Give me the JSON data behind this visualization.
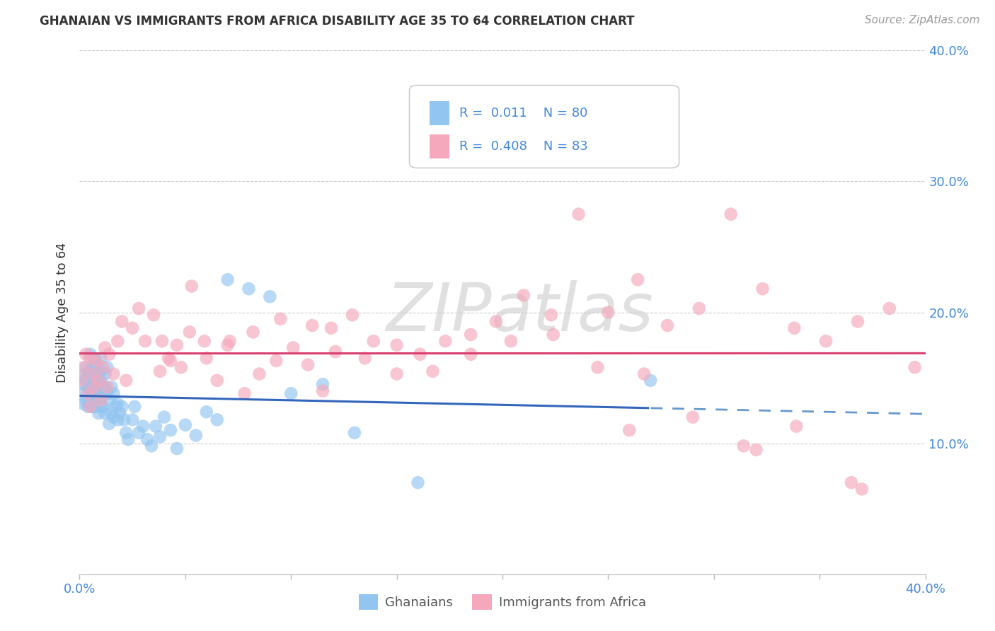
{
  "title": "GHANAIAN VS IMMIGRANTS FROM AFRICA DISABILITY AGE 35 TO 64 CORRELATION CHART",
  "source": "Source: ZipAtlas.com",
  "ylabel": "Disability Age 35 to 64",
  "xlim": [
    0.0,
    0.4
  ],
  "ylim": [
    0.0,
    0.4
  ],
  "R1": "0.011",
  "N1": "80",
  "R2": "0.408",
  "N2": "83",
  "legend_label1": "Ghanaians",
  "legend_label2": "Immigrants from Africa",
  "color_blue": "#92C5F0",
  "color_pink": "#F5A8BC",
  "line_blue_solid": "#3366BB",
  "line_blue_dashed": "#6699CC",
  "line_pink": "#D94070",
  "background_color": "#FFFFFF",
  "grid_color": "#CCCCCC",
  "watermark": "ZIPatlas",
  "blue_x": [
    0.001,
    0.002,
    0.002,
    0.002,
    0.003,
    0.003,
    0.003,
    0.004,
    0.004,
    0.004,
    0.005,
    0.005,
    0.005,
    0.005,
    0.006,
    0.006,
    0.006,
    0.006,
    0.007,
    0.007,
    0.007,
    0.007,
    0.007,
    0.008,
    0.008,
    0.008,
    0.008,
    0.009,
    0.009,
    0.009,
    0.009,
    0.01,
    0.01,
    0.01,
    0.01,
    0.01,
    0.011,
    0.011,
    0.012,
    0.012,
    0.012,
    0.013,
    0.013,
    0.014,
    0.014,
    0.015,
    0.015,
    0.016,
    0.016,
    0.017,
    0.018,
    0.018,
    0.019,
    0.02,
    0.021,
    0.022,
    0.023,
    0.025,
    0.026,
    0.028,
    0.03,
    0.032,
    0.034,
    0.036,
    0.038,
    0.04,
    0.043,
    0.046,
    0.05,
    0.055,
    0.06,
    0.065,
    0.07,
    0.08,
    0.09,
    0.1,
    0.115,
    0.13,
    0.16,
    0.27
  ],
  "blue_y": [
    0.138,
    0.152,
    0.13,
    0.145,
    0.148,
    0.133,
    0.158,
    0.143,
    0.153,
    0.128,
    0.142,
    0.133,
    0.155,
    0.168,
    0.138,
    0.148,
    0.128,
    0.158,
    0.143,
    0.133,
    0.153,
    0.128,
    0.165,
    0.138,
    0.148,
    0.128,
    0.158,
    0.143,
    0.133,
    0.153,
    0.123,
    0.148,
    0.138,
    0.128,
    0.155,
    0.165,
    0.143,
    0.128,
    0.142,
    0.153,
    0.123,
    0.138,
    0.158,
    0.133,
    0.115,
    0.143,
    0.123,
    0.138,
    0.12,
    0.128,
    0.118,
    0.13,
    0.123,
    0.128,
    0.118,
    0.108,
    0.103,
    0.118,
    0.128,
    0.108,
    0.113,
    0.103,
    0.098,
    0.113,
    0.105,
    0.12,
    0.11,
    0.096,
    0.114,
    0.106,
    0.124,
    0.118,
    0.225,
    0.218,
    0.212,
    0.138,
    0.145,
    0.108,
    0.07,
    0.148
  ],
  "pink_x": [
    0.001,
    0.002,
    0.003,
    0.004,
    0.005,
    0.006,
    0.007,
    0.008,
    0.009,
    0.01,
    0.011,
    0.012,
    0.013,
    0.014,
    0.016,
    0.018,
    0.02,
    0.022,
    0.025,
    0.028,
    0.031,
    0.035,
    0.039,
    0.043,
    0.048,
    0.053,
    0.059,
    0.065,
    0.071,
    0.078,
    0.085,
    0.093,
    0.101,
    0.11,
    0.119,
    0.129,
    0.139,
    0.15,
    0.161,
    0.173,
    0.185,
    0.197,
    0.21,
    0.223,
    0.236,
    0.25,
    0.264,
    0.278,
    0.293,
    0.308,
    0.323,
    0.338,
    0.353,
    0.368,
    0.383,
    0.395,
    0.038,
    0.042,
    0.046,
    0.052,
    0.06,
    0.07,
    0.082,
    0.095,
    0.108,
    0.121,
    0.135,
    0.15,
    0.167,
    0.185,
    0.204,
    0.224,
    0.245,
    0.267,
    0.29,
    0.314,
    0.339,
    0.365,
    0.115,
    0.26,
    0.32,
    0.37,
    0.005
  ],
  "pink_y": [
    0.148,
    0.158,
    0.168,
    0.138,
    0.128,
    0.153,
    0.143,
    0.163,
    0.148,
    0.133,
    0.158,
    0.173,
    0.143,
    0.168,
    0.153,
    0.178,
    0.193,
    0.148,
    0.188,
    0.203,
    0.178,
    0.198,
    0.178,
    0.163,
    0.158,
    0.22,
    0.178,
    0.148,
    0.178,
    0.138,
    0.153,
    0.163,
    0.173,
    0.19,
    0.188,
    0.198,
    0.178,
    0.153,
    0.168,
    0.178,
    0.183,
    0.193,
    0.213,
    0.198,
    0.275,
    0.2,
    0.225,
    0.19,
    0.203,
    0.275,
    0.218,
    0.188,
    0.178,
    0.193,
    0.203,
    0.158,
    0.155,
    0.165,
    0.175,
    0.185,
    0.165,
    0.175,
    0.185,
    0.195,
    0.16,
    0.17,
    0.165,
    0.175,
    0.155,
    0.168,
    0.178,
    0.183,
    0.158,
    0.153,
    0.12,
    0.098,
    0.113,
    0.07,
    0.14,
    0.11,
    0.095,
    0.065,
    0.165
  ]
}
